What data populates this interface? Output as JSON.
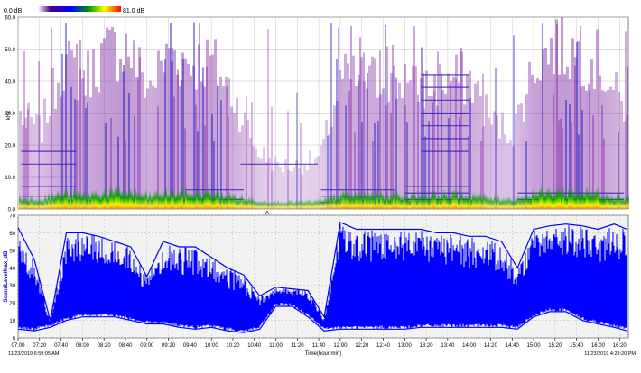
{
  "colorbar": {
    "min_label": "0.0 dB",
    "max_label": "81.0 dB",
    "colors": [
      "#ffffff",
      "#4b0082",
      "#0000ff",
      "#00a000",
      "#ffff00",
      "#ff0000"
    ]
  },
  "chart_data": [
    {
      "type": "heatmap",
      "name": "spectrogram",
      "xlabel": "",
      "ylabel": "kHz",
      "ylim": [
        0,
        60
      ],
      "y_ticks": [
        "0.0",
        "10.0",
        "20.0",
        "30.0",
        "40.0",
        "50.0",
        "60.0"
      ],
      "grid": true,
      "color_scale": {
        "min_db": 0.0,
        "max_db": 81.0
      },
      "cursor_marker": "^",
      "activity": {
        "x_hours": [
          7.0,
          7.33,
          7.67,
          8.0,
          8.33,
          8.67,
          9.0,
          9.33,
          9.67,
          10.0,
          10.33,
          10.67,
          11.0,
          11.33,
          11.67,
          12.0,
          12.33,
          12.67,
          13.0,
          13.33,
          13.67,
          14.0,
          14.33,
          14.67,
          15.0,
          15.33,
          15.67,
          16.0,
          16.33
        ],
        "intensity": [
          0.55,
          0.45,
          0.85,
          0.75,
          0.9,
          0.95,
          0.7,
          0.9,
          0.85,
          0.85,
          0.65,
          0.35,
          0.25,
          0.25,
          0.3,
          0.75,
          0.75,
          0.75,
          0.7,
          0.7,
          0.75,
          0.75,
          0.5,
          0.45,
          0.85,
          0.95,
          0.9,
          0.85,
          0.6
        ]
      }
    },
    {
      "type": "line",
      "name": "sound-level",
      "ylabel": "SoundLevelMax_dB",
      "xlabel": "Time(hour:min)",
      "ylim": [
        0,
        70
      ],
      "y_ticks": [
        "0",
        "10",
        "20",
        "30",
        "40",
        "50",
        "60",
        "70"
      ],
      "x_ticks": [
        "07:00",
        "07:20",
        "07:40",
        "08:00",
        "08:20",
        "08:40",
        "09:00",
        "09:20",
        "09:40",
        "10:00",
        "10:20",
        "10:40",
        "11:00",
        "11:20",
        "11:40",
        "12:00",
        "12:20",
        "12:40",
        "13:00",
        "13:20",
        "13:40",
        "14:00",
        "14:20",
        "14:40",
        "15:00",
        "15:20",
        "15:40",
        "16:00",
        "16:20"
      ],
      "grid": true,
      "series": [
        {
          "color": "#0000ff",
          "x_hours": [
            7.0,
            7.25,
            7.5,
            7.75,
            8.0,
            8.25,
            8.5,
            8.75,
            9.0,
            9.25,
            9.5,
            9.75,
            10.0,
            10.25,
            10.5,
            10.75,
            11.0,
            11.25,
            11.5,
            11.75,
            12.0,
            12.25,
            12.5,
            12.75,
            13.0,
            13.25,
            13.5,
            13.75,
            14.0,
            14.25,
            14.5,
            14.75,
            15.0,
            15.25,
            15.5,
            15.75,
            16.0,
            16.25,
            16.45
          ],
          "upper": [
            63,
            45,
            10,
            60,
            60,
            58,
            55,
            52,
            35,
            55,
            52,
            52,
            46,
            40,
            36,
            24,
            29,
            28,
            27,
            12,
            66,
            62,
            62,
            62,
            62,
            62,
            60,
            60,
            58,
            58,
            55,
            40,
            62,
            64,
            65,
            64,
            62,
            65,
            62
          ],
          "lower": [
            5,
            4,
            6,
            10,
            12,
            12,
            12,
            10,
            8,
            8,
            6,
            5,
            6,
            4,
            3,
            5,
            18,
            18,
            12,
            4,
            5,
            5,
            5,
            5,
            5,
            6,
            6,
            6,
            6,
            6,
            6,
            5,
            12,
            15,
            15,
            10,
            8,
            6,
            4
          ]
        }
      ]
    }
  ],
  "footer": {
    "start_timestamp": "11/23/2019 6:59:05 AM",
    "end_timestamp": "11/23/2019 4:28:20 PM"
  }
}
